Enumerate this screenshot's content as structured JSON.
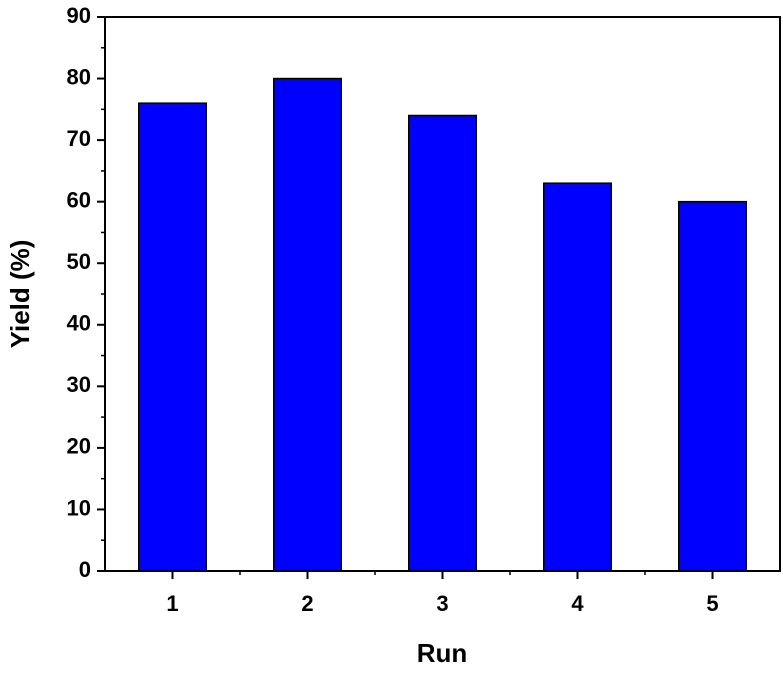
{
  "chart_data": {
    "type": "bar",
    "x_label": "Run",
    "y_label": "Yield (%)",
    "categories": [
      "1",
      "2",
      "3",
      "4",
      "5"
    ],
    "values": [
      76,
      80,
      74,
      63,
      60
    ],
    "color": "#0000ff",
    "ylim": [
      0,
      90
    ],
    "yticks": [
      0,
      10,
      20,
      30,
      40,
      50,
      60,
      70,
      80,
      90
    ],
    "grid": false
  }
}
